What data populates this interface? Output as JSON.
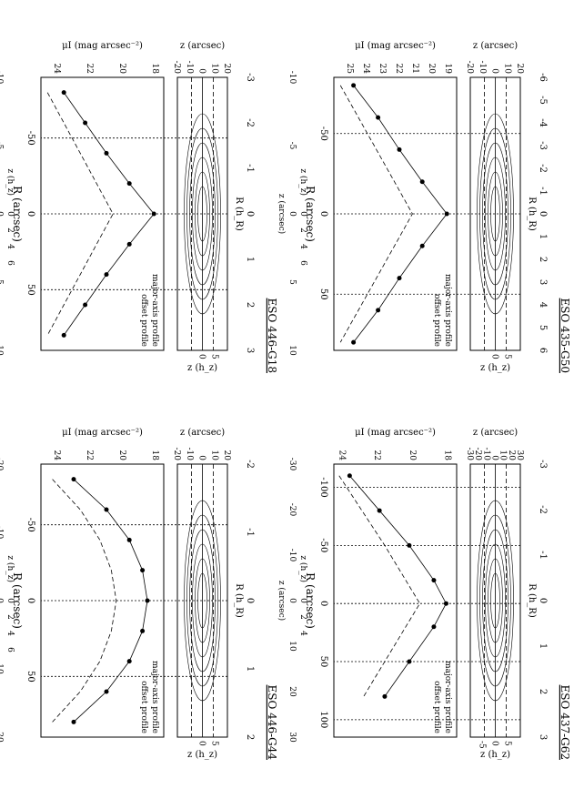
{
  "chart_data": [
    {
      "type": "line",
      "title": "ESO 435-G50",
      "xlabel": "R (arcsec)",
      "x2label": "R (h_R)",
      "ylabel_profile": "μI (mag arcsec⁻²)",
      "ylabel_image": "z (arcsec)",
      "vlabel": "z (arcsec)",
      "v2label": "z (h_z)",
      "y2label_image": "z (h_z)",
      "xlim": [
        -85,
        85
      ],
      "x_ticks": [
        "-50",
        "0",
        "50"
      ],
      "x2_ticks": [
        "-6",
        "-5",
        "-4",
        "-3",
        "-2",
        "-1",
        "0",
        "1",
        "2",
        "3",
        "4",
        "5",
        "6"
      ],
      "profile_ylim": [
        26,
        18.5
      ],
      "profile_y_ticks": [
        "25",
        "24",
        "23",
        "22",
        "21",
        "20",
        "19"
      ],
      "image_ylim": [
        -20,
        20
      ],
      "image_y_ticks": [
        "-20",
        "-10",
        "0",
        "10",
        "20"
      ],
      "image_y2_ticks": [
        "0",
        "5"
      ],
      "vertical_x_ticks": [
        "-10",
        "-5",
        "0",
        "5",
        "10"
      ],
      "vertical_x2_ticks": [
        "0",
        "2",
        "4",
        "6"
      ],
      "series": [
        {
          "name": "major-axis profile",
          "x": [
            -80,
            -60,
            -40,
            -20,
            0,
            20,
            40,
            60,
            80
          ],
          "y": [
            24.8,
            23.3,
            22.0,
            20.6,
            19.1,
            20.6,
            22.0,
            23.3,
            24.8
          ]
        },
        {
          "name": "offset profile",
          "x": [
            -80,
            -60,
            -40,
            -20,
            0,
            20,
            40,
            60,
            80
          ],
          "y": [
            25.6,
            24.5,
            23.4,
            22.3,
            21.2,
            22.3,
            23.4,
            24.5,
            25.6
          ]
        }
      ]
    },
    {
      "type": "line",
      "title": "ESO 446-G18",
      "xlabel": "R (arcsec)",
      "x2label": "R (h_R)",
      "ylabel_profile": "μI (mag arcsec⁻²)",
      "ylabel_image": "z (arcsec)",
      "vlabel": "z (arcsec)",
      "v2label": "z (h_z)",
      "y2label_image": "z (h_z)",
      "xlim": [
        -90,
        90
      ],
      "x_ticks": [
        "-50",
        "0",
        "50"
      ],
      "x2_ticks": [
        "-3",
        "-2",
        "-1",
        "0",
        "1",
        "2",
        "3"
      ],
      "profile_ylim": [
        25,
        17.5
      ],
      "profile_y_ticks": [
        "24",
        "22",
        "20",
        "18"
      ],
      "image_ylim": [
        -20,
        20
      ],
      "image_y_ticks": [
        "-20",
        "-10",
        "0",
        "10",
        "20"
      ],
      "image_y2_ticks": [
        "0",
        "5"
      ],
      "vertical_x_ticks": [
        "-10",
        "-5",
        "0",
        "5",
        "10"
      ],
      "vertical_x2_ticks": [
        "0",
        "2",
        "4",
        "6"
      ],
      "series": [
        {
          "name": "major-axis profile",
          "x": [
            -80,
            -60,
            -40,
            -20,
            0,
            20,
            40,
            60,
            80
          ],
          "y": [
            23.6,
            22.3,
            21.0,
            19.6,
            18.1,
            19.6,
            21.0,
            22.3,
            23.6
          ]
        },
        {
          "name": "offset profile",
          "x": [
            -80,
            -60,
            -40,
            -20,
            0,
            20,
            40,
            60,
            80
          ],
          "y": [
            24.6,
            23.6,
            22.6,
            21.6,
            20.6,
            21.6,
            22.6,
            23.6,
            24.6
          ]
        }
      ]
    },
    {
      "type": "line",
      "title": "ESO 437-G62",
      "xlabel": "R (arcsec)",
      "x2label": "R (h_R)",
      "ylabel_profile": "μI (mag arcsec⁻²)",
      "ylabel_image": "z (arcsec)",
      "vlabel": "z (arcsec)",
      "v2label": "z (h_z)",
      "y2label_image": "z (h_z)",
      "xlim": [
        -120,
        115
      ],
      "x_ticks": [
        "-100",
        "-50",
        "0",
        "50",
        "100"
      ],
      "x2_ticks": [
        "-3",
        "-2",
        "-1",
        "0",
        "1",
        "2",
        "3"
      ],
      "profile_ylim": [
        24.5,
        17.5
      ],
      "profile_y_ticks": [
        "24",
        "22",
        "20",
        "18"
      ],
      "image_ylim": [
        -30,
        30
      ],
      "image_y_ticks": [
        "-30",
        "-20",
        "-10",
        "0",
        "10",
        "20",
        "30"
      ],
      "image_y2_ticks": [
        "-5",
        "0",
        "5"
      ],
      "vertical_x_ticks": [
        "-30",
        "-20",
        "-10",
        "0",
        "10",
        "20",
        "30"
      ],
      "vertical_x2_ticks": [
        "0",
        "2",
        "4"
      ],
      "series": [
        {
          "name": "major-axis profile",
          "x": [
            -110,
            -80,
            -50,
            -20,
            0,
            20,
            50,
            80
          ],
          "y": [
            23.6,
            21.9,
            20.2,
            18.8,
            18.1,
            18.8,
            20.2,
            21.6
          ]
        },
        {
          "name": "offset profile",
          "x": [
            -110,
            -80,
            -50,
            -20,
            0,
            20,
            50,
            80
          ],
          "y": [
            24.2,
            22.9,
            21.6,
            20.4,
            19.6,
            20.4,
            21.6,
            22.8
          ]
        }
      ]
    },
    {
      "type": "line",
      "title": "ESO 446-G44",
      "xlabel": "R (arcsec)",
      "x2label": "R (h_R)",
      "ylabel_profile": "μI (mag arcsec⁻²)",
      "ylabel_image": "z (arcsec)",
      "vlabel": "z (arcsec)",
      "v2label": "z (h_z)",
      "y2label_image": "z (h_z)",
      "xlim": [
        -90,
        90
      ],
      "x_ticks": [
        "-50",
        "0",
        "50"
      ],
      "x2_ticks": [
        "-2",
        "-1",
        "0",
        "1",
        "2"
      ],
      "profile_ylim": [
        25,
        17.5
      ],
      "profile_y_ticks": [
        "24",
        "22",
        "20",
        "18"
      ],
      "image_ylim": [
        -20,
        20
      ],
      "image_y_ticks": [
        "-20",
        "-10",
        "0",
        "10",
        "20"
      ],
      "image_y2_ticks": [
        "0",
        "5"
      ],
      "vertical_x_ticks": [
        "-20",
        "-10",
        "0",
        "10",
        "20"
      ],
      "vertical_x2_ticks": [
        "0",
        "2",
        "4",
        "6"
      ],
      "series": [
        {
          "name": "major-axis profile",
          "x": [
            -80,
            -60,
            -40,
            -20,
            0,
            20,
            40,
            60,
            80
          ],
          "y": [
            23.0,
            21.0,
            19.6,
            18.8,
            18.5,
            18.8,
            19.6,
            21.0,
            23.0
          ]
        },
        {
          "name": "offset profile",
          "x": [
            -80,
            -60,
            -40,
            -20,
            0,
            20,
            40,
            60,
            80
          ],
          "y": [
            24.3,
            22.6,
            21.4,
            20.7,
            20.4,
            20.7,
            21.4,
            22.6,
            24.3
          ]
        }
      ]
    }
  ]
}
